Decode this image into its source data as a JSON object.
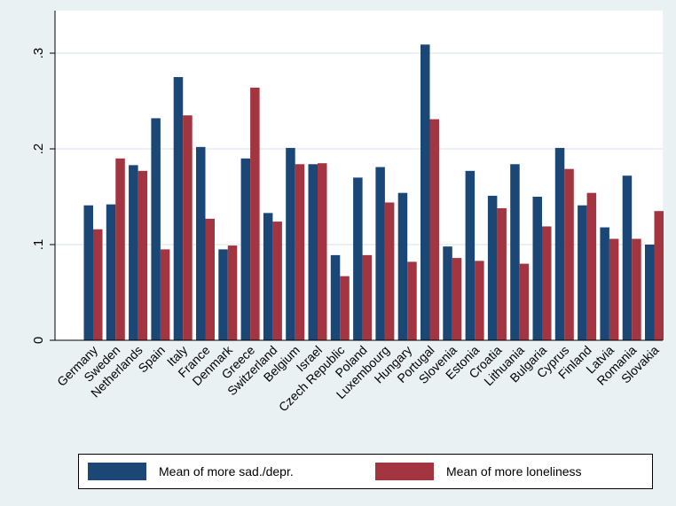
{
  "chart_data": {
    "type": "bar",
    "title": "",
    "xlabel": "",
    "ylabel": "",
    "ylim": [
      0,
      0.33
    ],
    "yticks": [
      0,
      0.1,
      0.2,
      0.3
    ],
    "ytick_labels": [
      "0",
      ".1",
      ".2",
      ".3"
    ],
    "grid": true,
    "legend_position": "bottom",
    "categories": [
      "Germany",
      "Sweden",
      "Netherlands",
      "Spain",
      "Italy",
      "France",
      "Denmark",
      "Greece",
      "Switzerland",
      "Belgium",
      "Israel",
      "Czech Republic",
      "Poland",
      "Luxembourg",
      "Hungary",
      "Portugal",
      "Slovenia",
      "Estonia",
      "Croatia",
      "Lithuania",
      "Bulgaria",
      "Cyprus",
      "Finland",
      "Latvia",
      "Romania",
      "Slovakia"
    ],
    "series": [
      {
        "name": "Mean of more sad./depr.",
        "color": "#1a4776",
        "values": [
          0.141,
          0.142,
          0.183,
          0.232,
          0.275,
          0.202,
          0.095,
          0.19,
          0.133,
          0.201,
          0.184,
          0.089,
          0.17,
          0.181,
          0.154,
          0.309,
          0.098,
          0.177,
          0.151,
          0.184,
          0.15,
          0.201,
          0.141,
          0.118,
          0.172,
          0.1
        ]
      },
      {
        "name": "Mean of more loneliness",
        "color": "#a33540",
        "values": [
          0.116,
          0.19,
          0.177,
          0.095,
          0.235,
          0.127,
          0.099,
          0.264,
          0.124,
          0.184,
          0.185,
          0.067,
          0.089,
          0.144,
          0.082,
          0.231,
          0.086,
          0.083,
          0.138,
          0.08,
          0.119,
          0.179,
          0.154,
          0.106,
          0.106,
          0.135
        ]
      }
    ]
  }
}
